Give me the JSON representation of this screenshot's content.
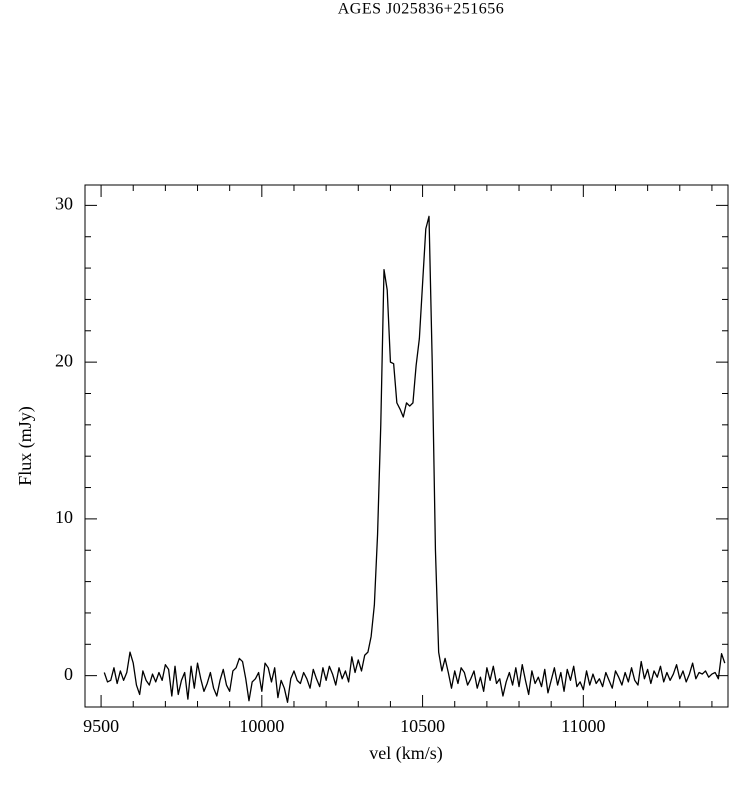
{
  "chart_data": {
    "type": "line",
    "title": "AGES J025836+251656",
    "xlabel": "vel (km/s)",
    "ylabel": "Flux (mJy)",
    "color": "#000000",
    "xlim": [
      9450,
      11450
    ],
    "ylim": [
      -2,
      31.3
    ],
    "xticks": [
      9500,
      10000,
      10500,
      11000
    ],
    "yticks": [
      0,
      10,
      20,
      30
    ],
    "xminorticks": [
      9600,
      9700,
      9800,
      9900,
      10100,
      10200,
      10300,
      10400,
      10600,
      10700,
      10800,
      10900,
      11100,
      11200,
      11300,
      11400
    ],
    "yminorticks": [
      2,
      4,
      6,
      8,
      12,
      14,
      16,
      18,
      22,
      24,
      26,
      28
    ],
    "x": [
      9510,
      9520,
      9530,
      9540,
      9550,
      9560,
      9570,
      9580,
      9590,
      9600,
      9610,
      9620,
      9630,
      9640,
      9650,
      9660,
      9670,
      9680,
      9690,
      9700,
      9710,
      9720,
      9730,
      9740,
      9750,
      9760,
      9770,
      9780,
      9790,
      9800,
      9810,
      9820,
      9830,
      9840,
      9850,
      9860,
      9870,
      9880,
      9890,
      9900,
      9910,
      9920,
      9930,
      9940,
      9950,
      9960,
      9970,
      9980,
      9990,
      10000,
      10010,
      10020,
      10030,
      10040,
      10050,
      10060,
      10070,
      10080,
      10090,
      10100,
      10110,
      10120,
      10130,
      10140,
      10150,
      10160,
      10170,
      10180,
      10190,
      10200,
      10210,
      10220,
      10230,
      10240,
      10250,
      10260,
      10270,
      10280,
      10290,
      10300,
      10310,
      10320,
      10330,
      10340,
      10350,
      10360,
      10370,
      10380,
      10390,
      10400,
      10410,
      10420,
      10430,
      10440,
      10450,
      10460,
      10470,
      10480,
      10490,
      10500,
      10510,
      10520,
      10530,
      10540,
      10550,
      10560,
      10570,
      10580,
      10590,
      10600,
      10610,
      10620,
      10630,
      10640,
      10650,
      10660,
      10670,
      10680,
      10690,
      10700,
      10710,
      10720,
      10730,
      10740,
      10750,
      10760,
      10770,
      10780,
      10790,
      10800,
      10810,
      10820,
      10830,
      10840,
      10850,
      10860,
      10870,
      10880,
      10890,
      10900,
      10910,
      10920,
      10930,
      10940,
      10950,
      10960,
      10970,
      10980,
      10990,
      11000,
      11010,
      11020,
      11030,
      11040,
      11050,
      11060,
      11070,
      11080,
      11090,
      11100,
      11110,
      11120,
      11130,
      11140,
      11150,
      11160,
      11170,
      11180,
      11190,
      11200,
      11210,
      11220,
      11230,
      11240,
      11250,
      11260,
      11270,
      11280,
      11290,
      11300,
      11310,
      11320,
      11330,
      11340,
      11350,
      11360,
      11370,
      11380,
      11390,
      11400,
      11410,
      11420,
      11430,
      11440
    ],
    "values": [
      0.2,
      -0.4,
      -0.3,
      0.5,
      -0.5,
      0.3,
      -0.3,
      0.2,
      1.5,
      0.8,
      -0.6,
      -1.2,
      0.3,
      -0.3,
      -0.6,
      0.1,
      -0.4,
      0.2,
      -0.3,
      0.7,
      0.4,
      -1.3,
      0.6,
      -1.2,
      -0.3,
      0.2,
      -1.5,
      0.6,
      -0.8,
      0.8,
      -0.2,
      -1.0,
      -0.5,
      0.2,
      -0.8,
      -1.3,
      -0.3,
      0.4,
      -0.6,
      -1.0,
      0.3,
      0.5,
      1.1,
      0.9,
      -0.2,
      -1.6,
      -0.4,
      -0.2,
      0.2,
      -1.0,
      0.8,
      0.5,
      -0.4,
      0.5,
      -1.4,
      -0.3,
      -0.8,
      -1.7,
      -0.2,
      0.3,
      -0.3,
      -0.5,
      0.2,
      -0.2,
      -0.8,
      0.4,
      -0.2,
      -0.7,
      0.5,
      -0.3,
      0.6,
      0.1,
      -0.6,
      0.5,
      -0.2,
      0.3,
      -0.4,
      1.2,
      0.2,
      1.0,
      0.3,
      1.3,
      1.5,
      2.5,
      4.5,
      9,
      16,
      25.9,
      24.6,
      20.0,
      19.9,
      17.4,
      17.0,
      16.5,
      17.4,
      17.2,
      17.4,
      19.8,
      21.5,
      25,
      28.5,
      29.3,
      20,
      8,
      1.5,
      0.3,
      1.1,
      0.2,
      -0.8,
      0.3,
      -0.5,
      0.5,
      0.2,
      -0.6,
      -0.2,
      0.3,
      -0.8,
      -0.1,
      -1.0,
      0.5,
      -0.3,
      0.6,
      -0.5,
      -0.2,
      -1.3,
      -0.4,
      0.2,
      -0.6,
      0.5,
      -0.7,
      0.7,
      -0.3,
      -1.2,
      0.3,
      -0.5,
      -0.1,
      -0.7,
      0.4,
      -1.1,
      -0.3,
      0.5,
      -0.6,
      0.2,
      -1.0,
      0.4,
      -0.3,
      0.6,
      -0.7,
      -0.4,
      -0.9,
      0.3,
      -0.6,
      0.1,
      -0.5,
      -0.2,
      -0.7,
      0.2,
      -0.3,
      -0.8,
      0.3,
      -0.1,
      -0.6,
      0.2,
      -0.4,
      0.5,
      -0.3,
      -0.6,
      0.9,
      -0.2,
      0.4,
      -0.5,
      0.3,
      -0.1,
      0.6,
      -0.4,
      0.2,
      -0.3,
      0.1,
      0.7,
      -0.2,
      0.3,
      -0.4,
      0.1,
      0.8,
      -0.2,
      0.2,
      0.1,
      0.3,
      -0.1,
      0.1,
      0.2,
      -0.2,
      1.4,
      0.8
    ]
  }
}
